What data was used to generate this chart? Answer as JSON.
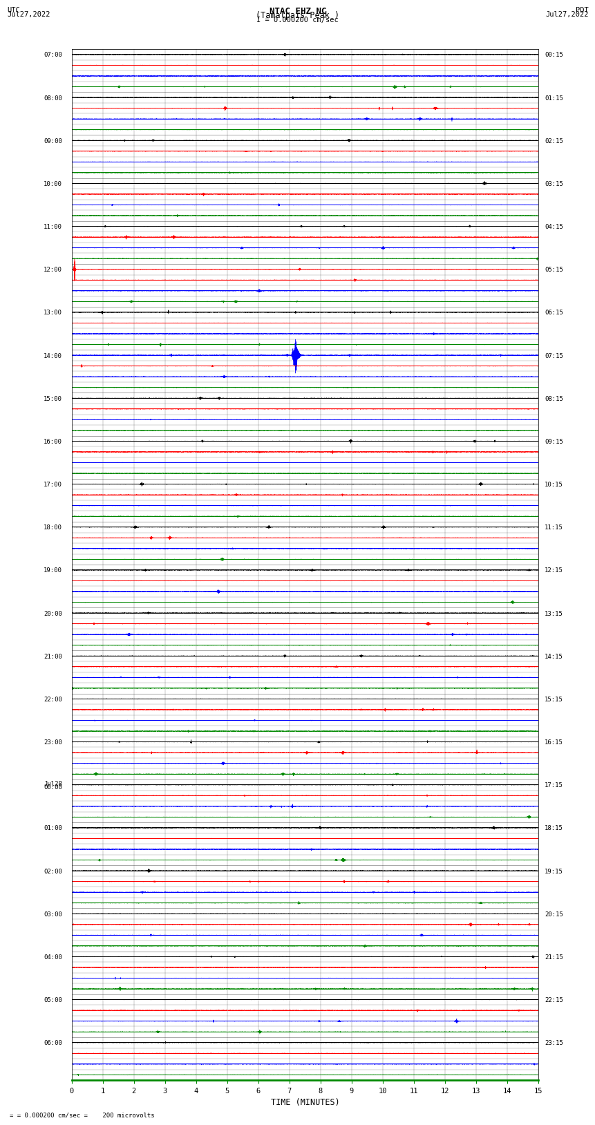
{
  "title_line1": "NTAC EHZ NC",
  "title_line2": "(Tamalpais Peak )",
  "scale_label": "= 0.000200 cm/sec",
  "left_date": "Jul27,2022",
  "right_date": "Jul27,2022",
  "left_tz": "UTC",
  "right_tz": "PDT",
  "bottom_label": "TIME (MINUTES)",
  "bottom_note": "= 0.000200 cm/sec =    200 microvolts",
  "num_traces": 96,
  "trace_duration_min": 15,
  "sample_rate": 40,
  "background_color": "#ffffff",
  "trace_colors_cycle": [
    "#000000",
    "#ff0000",
    "#0000ff",
    "#008800"
  ],
  "utc_labels": [
    "07:00",
    "",
    "",
    "",
    "08:00",
    "",
    "",
    "",
    "09:00",
    "",
    "",
    "",
    "10:00",
    "",
    "",
    "",
    "11:00",
    "",
    "",
    "",
    "12:00",
    "",
    "",
    "",
    "13:00",
    "",
    "",
    "",
    "14:00",
    "",
    "",
    "",
    "15:00",
    "",
    "",
    "",
    "16:00",
    "",
    "",
    "",
    "17:00",
    "",
    "",
    "",
    "18:00",
    "",
    "",
    "",
    "19:00",
    "",
    "",
    "",
    "20:00",
    "",
    "",
    "",
    "21:00",
    "",
    "",
    "",
    "22:00",
    "",
    "",
    "",
    "23:00",
    "",
    "",
    "",
    "Jul28\n00:00",
    "",
    "",
    "",
    "01:00",
    "",
    "",
    "",
    "02:00",
    "",
    "",
    "",
    "03:00",
    "",
    "",
    "",
    "04:00",
    "",
    "",
    "",
    "05:00",
    "",
    "",
    "",
    "06:00",
    "",
    "",
    ""
  ],
  "pdt_labels": [
    "00:15",
    "",
    "",
    "",
    "01:15",
    "",
    "",
    "",
    "02:15",
    "",
    "",
    "",
    "03:15",
    "",
    "",
    "",
    "04:15",
    "",
    "",
    "",
    "05:15",
    "",
    "",
    "",
    "06:15",
    "",
    "",
    "",
    "07:15",
    "",
    "",
    "",
    "08:15",
    "",
    "",
    "",
    "09:15",
    "",
    "",
    "",
    "10:15",
    "",
    "",
    "",
    "11:15",
    "",
    "",
    "",
    "12:15",
    "",
    "",
    "",
    "13:15",
    "",
    "",
    "",
    "14:15",
    "",
    "",
    "",
    "15:15",
    "",
    "",
    "",
    "16:15",
    "",
    "",
    "",
    "17:15",
    "",
    "",
    "",
    "18:15",
    "",
    "",
    "",
    "19:15",
    "",
    "",
    "",
    "20:15",
    "",
    "",
    "",
    "21:15",
    "",
    "",
    "",
    "22:15",
    "",
    "",
    "",
    "23:15",
    "",
    "",
    ""
  ],
  "big_event_trace": 28,
  "big_event_minute": 7.3,
  "big_event_color": "#0000ff",
  "red_spike_trace": 20,
  "red_spike_minute": 0.1
}
